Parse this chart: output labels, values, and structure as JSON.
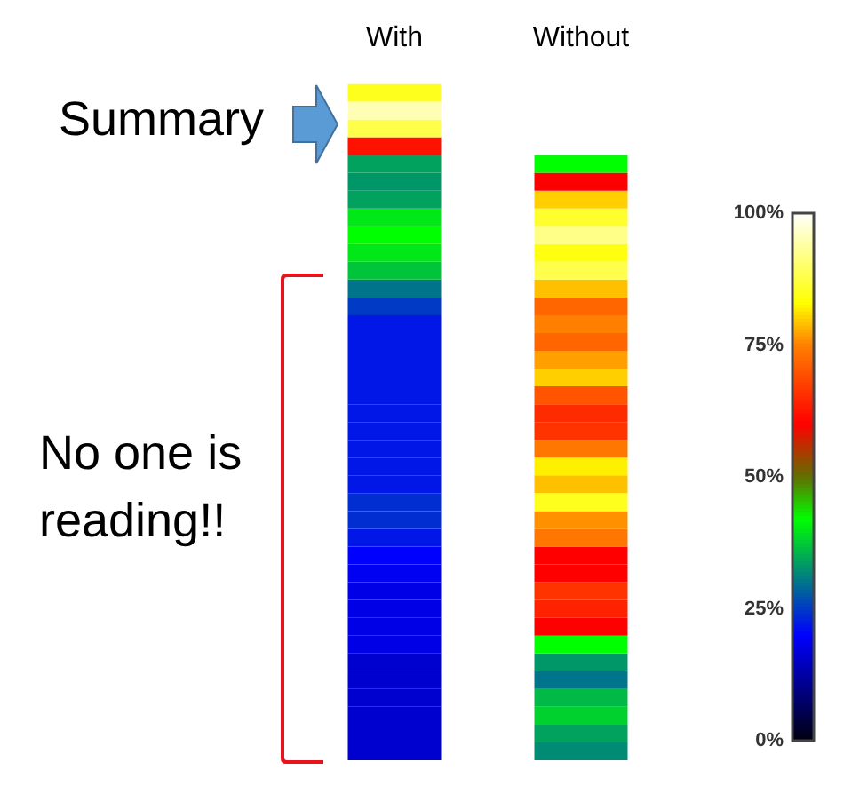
{
  "chart_data": {
    "type": "heatmap",
    "categories": [
      "With",
      "Without"
    ],
    "y_categories": [
      null,
      null,
      null,
      null,
      null,
      null,
      null,
      null,
      null,
      null,
      null,
      null,
      null,
      null,
      null,
      null,
      null,
      null,
      null,
      null,
      null,
      null,
      null,
      null,
      null,
      null,
      null,
      null,
      null,
      null,
      null,
      null,
      null,
      null,
      null,
      null,
      null,
      null
    ],
    "cells": [
      [
        85,
        null
      ],
      [
        95,
        null
      ],
      [
        88,
        null
      ],
      [
        62,
        null
      ],
      [
        34,
        42
      ],
      [
        33,
        60
      ],
      [
        34,
        80
      ],
      [
        40,
        86
      ],
      [
        42,
        92
      ],
      [
        40,
        84
      ],
      [
        37,
        88
      ],
      [
        30,
        79
      ],
      [
        25,
        72
      ],
      [
        22,
        75
      ],
      [
        22,
        72
      ],
      [
        22,
        77
      ],
      [
        22,
        80
      ],
      [
        22,
        70
      ],
      [
        22,
        65
      ],
      [
        22,
        66
      ],
      [
        22,
        74
      ],
      [
        22,
        82
      ],
      [
        22,
        79
      ],
      [
        24,
        85
      ],
      [
        24,
        76
      ],
      [
        22,
        74
      ],
      [
        20,
        60
      ],
      [
        19,
        60
      ],
      [
        18,
        66
      ],
      [
        18,
        64
      ],
      [
        18,
        60
      ],
      [
        18,
        42
      ],
      [
        16,
        33
      ],
      [
        16,
        30
      ],
      [
        16,
        36
      ],
      [
        16,
        38
      ],
      [
        16,
        34
      ],
      [
        16,
        32
      ]
    ],
    "clim": [
      0,
      100
    ],
    "cticks": [
      {
        "value": 0,
        "label": "0%"
      },
      {
        "value": 25,
        "label": "25%"
      },
      {
        "value": 50,
        "label": "50%"
      },
      {
        "value": 75,
        "label": "75%"
      },
      {
        "value": 100,
        "label": "100%"
      }
    ],
    "annotations": [
      "Summary",
      "No one is reading!!"
    ]
  }
}
